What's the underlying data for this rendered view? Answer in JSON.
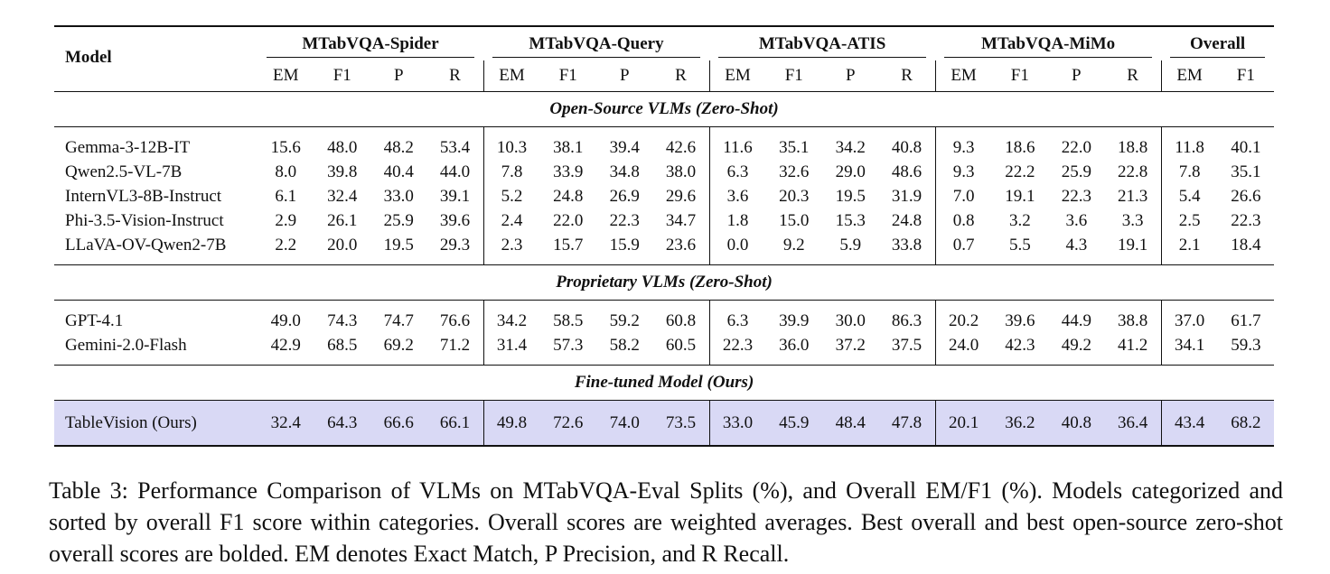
{
  "table": {
    "model_header": "Model",
    "groups": [
      "MTabVQA-Spider",
      "MTabVQA-Query",
      "MTabVQA-ATIS",
      "MTabVQA-MiMo",
      "Overall"
    ],
    "sub_headers": [
      "EM",
      "F1",
      "P",
      "R",
      "EM",
      "F1",
      "P",
      "R",
      "EM",
      "F1",
      "P",
      "R",
      "EM",
      "F1",
      "P",
      "R",
      "EM",
      "F1"
    ],
    "categories": [
      {
        "title": "Open-Source VLMs (Zero-Shot)",
        "rows": [
          {
            "name": "Gemma-3-12B-IT",
            "values": [
              "15.6",
              "48.0",
              "48.2",
              "53.4",
              "10.3",
              "38.1",
              "39.4",
              "42.6",
              "11.6",
              "35.1",
              "34.2",
              "40.8",
              "9.3",
              "18.6",
              "22.0",
              "18.8",
              "11.8",
              "40.1"
            ],
            "bold": [
              16,
              17
            ]
          },
          {
            "name": "Qwen2.5-VL-7B",
            "values": [
              "8.0",
              "39.8",
              "40.4",
              "44.0",
              "7.8",
              "33.9",
              "34.8",
              "38.0",
              "6.3",
              "32.6",
              "29.0",
              "48.6",
              "9.3",
              "22.2",
              "25.9",
              "22.8",
              "7.8",
              "35.1"
            ],
            "bold": []
          },
          {
            "name": "InternVL3-8B-Instruct",
            "values": [
              "6.1",
              "32.4",
              "33.0",
              "39.1",
              "5.2",
              "24.8",
              "26.9",
              "29.6",
              "3.6",
              "20.3",
              "19.5",
              "31.9",
              "7.0",
              "19.1",
              "22.3",
              "21.3",
              "5.4",
              "26.6"
            ],
            "bold": []
          },
          {
            "name": "Phi-3.5-Vision-Instruct",
            "values": [
              "2.9",
              "26.1",
              "25.9",
              "39.6",
              "2.4",
              "22.0",
              "22.3",
              "34.7",
              "1.8",
              "15.0",
              "15.3",
              "24.8",
              "0.8",
              "3.2",
              "3.6",
              "3.3",
              "2.5",
              "22.3"
            ],
            "bold": []
          },
          {
            "name": "LLaVA-OV-Qwen2-7B",
            "values": [
              "2.2",
              "20.0",
              "19.5",
              "29.3",
              "2.3",
              "15.7",
              "15.9",
              "23.6",
              "0.0",
              "9.2",
              "5.9",
              "33.8",
              "0.7",
              "5.5",
              "4.3",
              "19.1",
              "2.1",
              "18.4"
            ],
            "bold": []
          }
        ]
      },
      {
        "title": "Proprietary VLMs (Zero-Shot)",
        "rows": [
          {
            "name": "GPT-4.1",
            "values": [
              "49.0",
              "74.3",
              "74.7",
              "76.6",
              "34.2",
              "58.5",
              "59.2",
              "60.8",
              "6.3",
              "39.9",
              "30.0",
              "86.3",
              "20.2",
              "39.6",
              "44.9",
              "38.8",
              "37.0",
              "61.7"
            ],
            "bold": [
              16,
              17
            ]
          },
          {
            "name": "Gemini-2.0-Flash",
            "values": [
              "42.9",
              "68.5",
              "69.2",
              "71.2",
              "31.4",
              "57.3",
              "58.2",
              "60.5",
              "22.3",
              "36.0",
              "37.2",
              "37.5",
              "24.0",
              "42.3",
              "49.2",
              "41.2",
              "34.1",
              "59.3"
            ],
            "bold": []
          }
        ]
      },
      {
        "title": "Fine-tuned Model (Ours)",
        "rows": [
          {
            "name": "TableVision (Ours)",
            "values": [
              "32.4",
              "64.3",
              "66.6",
              "66.1",
              "49.8",
              "72.6",
              "74.0",
              "73.5",
              "33.0",
              "45.9",
              "48.4",
              "47.8",
              "20.1",
              "36.2",
              "40.8",
              "36.4",
              "43.4",
              "68.2"
            ],
            "bold": [
              16,
              17
            ],
            "highlight": true
          }
        ]
      }
    ]
  },
  "caption": "Table 3: Performance Comparison of VLMs on MTabVQA-Eval Splits (%), and Overall EM/F1 (%). Models categorized and sorted by overall F1 score within categories. Overall scores are weighted averages. Best overall and best open-source zero-shot overall scores are bolded. EM denotes Exact Match, P Precision, and R Recall.",
  "colors": {
    "highlight_row": "#d9d9f5",
    "rule": "#111111"
  }
}
